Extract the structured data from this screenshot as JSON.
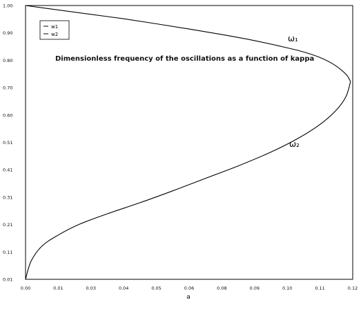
{
  "chart_data": {
    "type": "line",
    "title": "",
    "xlabel": "a",
    "ylabel": "",
    "xlim": [
      0.0,
      0.12
    ],
    "ylim": [
      0.01,
      1.0
    ],
    "x_tick_labels": [
      "0.00",
      "0.01",
      "0.03",
      "0.04",
      "0.05",
      "0.06",
      "0.08",
      "0.09",
      "0.10",
      "0.11",
      "0.12"
    ],
    "y_tick_labels": [
      "0.01",
      "0.11",
      "0.21",
      "0.31",
      "0.41",
      "0.51",
      "0.60",
      "0.70",
      "0.80",
      "0.90",
      "1.00"
    ],
    "legend": {
      "position": "top-left",
      "entries": [
        "w1",
        "w2"
      ]
    },
    "annotation": "Dimensionless frequency of the oscillations as a function of kappa",
    "curve_labels": [
      "ω₁",
      "ω₂"
    ],
    "series": [
      {
        "name": "w1",
        "color": "#000000",
        "x": [
          0.0,
          0.012,
          0.024,
          0.036,
          0.048,
          0.06,
          0.072,
          0.084,
          0.096,
          0.102,
          0.108,
          0.1125,
          0.1158,
          0.118,
          0.1192
        ],
        "y": [
          1.0,
          0.984,
          0.968,
          0.952,
          0.934,
          0.915,
          0.895,
          0.873,
          0.847,
          0.832,
          0.812,
          0.79,
          0.767,
          0.746,
          0.725
        ]
      },
      {
        "name": "w2",
        "color": "#000000",
        "x": [
          0.0,
          0.002,
          0.006,
          0.012,
          0.02,
          0.03,
          0.042,
          0.054,
          0.066,
          0.078,
          0.09,
          0.1,
          0.108,
          0.1138,
          0.1175,
          0.1192
        ],
        "y": [
          0.01,
          0.075,
          0.13,
          0.17,
          0.21,
          0.247,
          0.287,
          0.33,
          0.375,
          0.42,
          0.47,
          0.52,
          0.57,
          0.62,
          0.67,
          0.725
        ]
      }
    ]
  }
}
